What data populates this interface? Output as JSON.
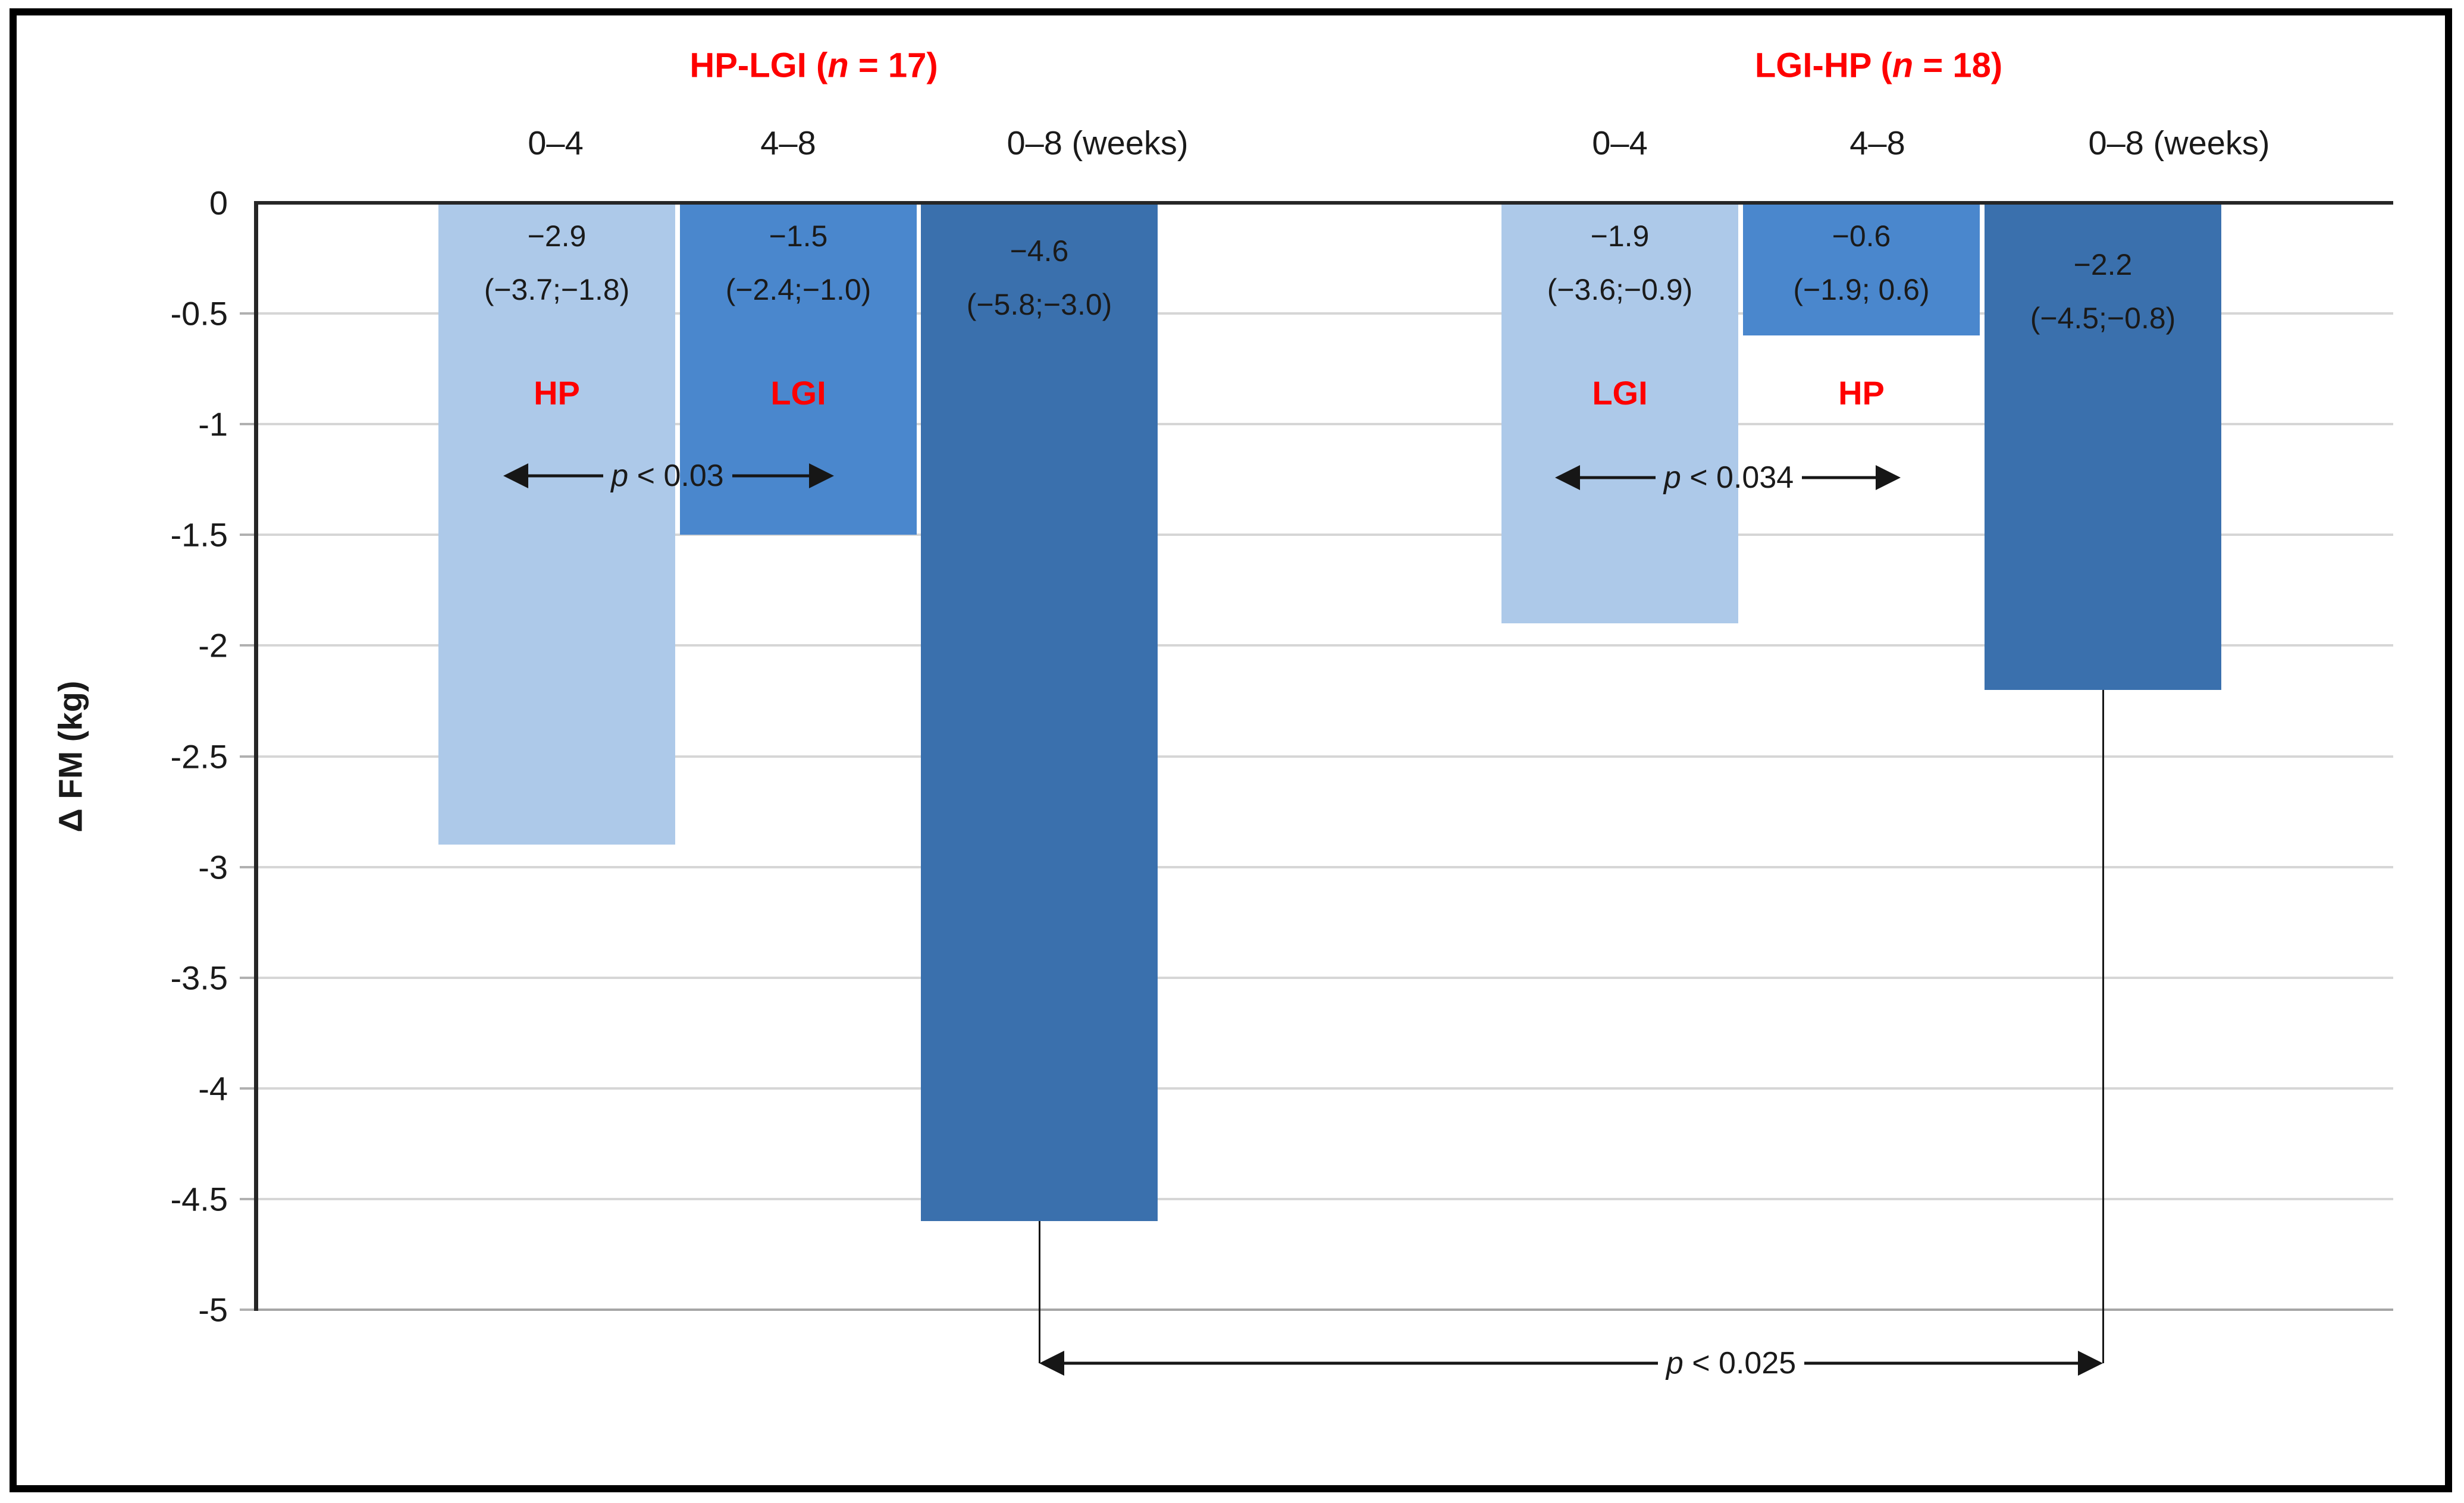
{
  "chart_data": {
    "type": "bar",
    "title": "",
    "ylabel": "Δ FM (kg)",
    "ylim": [
      -5,
      0
    ],
    "grid": true,
    "yticks": [
      "0",
      "-0.5",
      "-1",
      "-1.5",
      "-2",
      "-2.5",
      "-3",
      "-3.5",
      "-4",
      "-4.5",
      "-5"
    ],
    "ytick_values": [
      0,
      -0.5,
      -1,
      -1.5,
      -2,
      -2.5,
      -3,
      -3.5,
      -4,
      -4.5,
      -5
    ],
    "text_color": "#1a1a1a",
    "red_color": "#fe0000",
    "bar_colors": {
      "light": "#adc9e9",
      "medium": "#4a87cd",
      "dark": "#3a70ad"
    },
    "groups": [
      {
        "name": "HP-LGI",
        "n": 17,
        "title": {
          "prefix": "HP-LGI (",
          "italic": "n",
          "suffix": " = 17)"
        },
        "categories": [
          "0–4",
          "4–8",
          "0–8 (weeks)"
        ],
        "bars": [
          {
            "category": "0–4",
            "diet": "HP",
            "value": -2.9,
            "value_label": "−2.9",
            "ci": "(−3.7;−1.8)",
            "shade": "light"
          },
          {
            "category": "4–8",
            "diet": "LGI",
            "value": -1.5,
            "value_label": "−1.5",
            "ci": "(−2.4;−1.0)",
            "shade": "medium"
          },
          {
            "category": "0–8 (weeks)",
            "diet": "",
            "value": -4.6,
            "value_label": "−4.6",
            "ci": "(−5.8;−3.0)",
            "shade": "dark"
          }
        ],
        "p_label": {
          "italic": "p",
          "text": " < 0.03"
        }
      },
      {
        "name": "LGI-HP",
        "n": 18,
        "title": {
          "prefix": "LGI-HP (",
          "italic": "n",
          "suffix": " = 18)"
        },
        "categories": [
          "0–4",
          "4–8",
          "0–8 (weeks)"
        ],
        "bars": [
          {
            "category": "0–4",
            "diet": "LGI",
            "value": -1.9,
            "value_label": "−1.9",
            "ci": "(−3.6;−0.9)",
            "shade": "light"
          },
          {
            "category": "4–8",
            "diet": "HP",
            "value": -0.6,
            "value_label": "−0.6",
            "ci": "(−1.9; 0.6)",
            "shade": "medium"
          },
          {
            "category": "0–8 (weeks)",
            "diet": "",
            "value": -2.2,
            "value_label": "−2.2",
            "ci": "(−4.5;−0.8)",
            "shade": "dark"
          }
        ],
        "p_label": {
          "italic": "p",
          "text": " < 0.034"
        }
      }
    ],
    "between_annotation": {
      "italic": "p",
      "text": " < 0.025"
    }
  }
}
